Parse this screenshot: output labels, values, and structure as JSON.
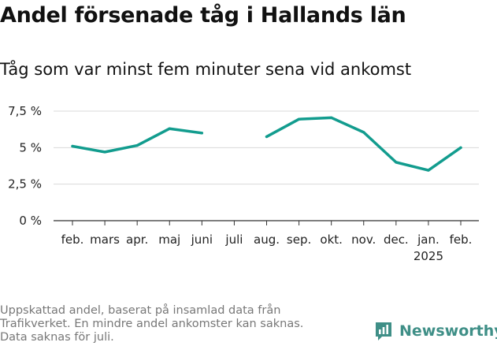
{
  "chart_data": {
    "type": "line",
    "title": "Andel försenade tåg i Hallands län",
    "subtitle": "Tåg som var minst fem minuter sena vid ankomst",
    "y_ticks": [
      "0 %",
      "2,5 %",
      "5 %",
      "7,5 %"
    ],
    "y_tick_values": [
      0,
      2.5,
      5,
      7.5
    ],
    "ylim": [
      0,
      7.5
    ],
    "grid": true,
    "categories": [
      {
        "label": "feb.",
        "sub": ""
      },
      {
        "label": "mars",
        "sub": ""
      },
      {
        "label": "apr.",
        "sub": ""
      },
      {
        "label": "maj",
        "sub": ""
      },
      {
        "label": "juni",
        "sub": ""
      },
      {
        "label": "juli",
        "sub": ""
      },
      {
        "label": "aug.",
        "sub": ""
      },
      {
        "label": "sep.",
        "sub": ""
      },
      {
        "label": "okt.",
        "sub": ""
      },
      {
        "label": "nov.",
        "sub": ""
      },
      {
        "label": "dec.",
        "sub": ""
      },
      {
        "label": "jan.",
        "sub": "2025"
      },
      {
        "label": "feb.",
        "sub": ""
      }
    ],
    "series": [
      {
        "color": "#129c8e",
        "values": [
          5.1,
          4.7,
          5.15,
          6.3,
          6.0,
          null,
          5.75,
          6.95,
          7.05,
          6.05,
          4.0,
          3.45,
          5.0
        ]
      }
    ]
  },
  "footer": {
    "caption_lines": [
      "Uppskattad andel, baserat på insamlad data från",
      "Trafikverket. En mindre andel ankomster kan saknas.",
      "Data saknas för juli."
    ],
    "brand": "Newsworthy",
    "brand_color": "#3f8f87"
  }
}
